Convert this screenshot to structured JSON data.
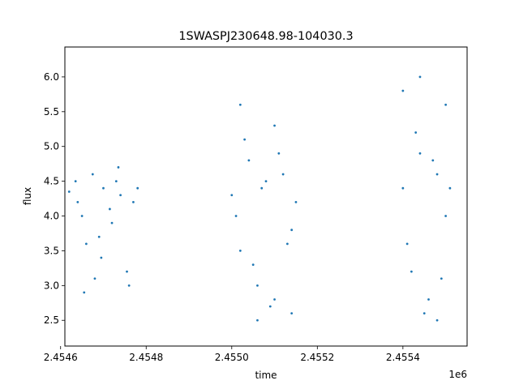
{
  "chart_data": {
    "type": "scatter",
    "title": "1SWASPJ230648.98-104030.3",
    "xlabel": "time",
    "ylabel": "flux",
    "x_offset_label": "1e6",
    "xlim": [
      2.45461,
      2.45555
    ],
    "ylim": [
      2.13,
      6.43
    ],
    "x_ticks": [
      {
        "value": 2.4546,
        "label": "2.4546"
      },
      {
        "value": 2.4548,
        "label": "2.4548"
      },
      {
        "value": 2.455,
        "label": "2.4550"
      },
      {
        "value": 2.4552,
        "label": "2.4552"
      },
      {
        "value": 2.4554,
        "label": "2.4554"
      }
    ],
    "y_ticks": [
      {
        "value": 2.5,
        "label": "2.5"
      },
      {
        "value": 3.0,
        "label": "3.0"
      },
      {
        "value": 3.5,
        "label": "3.5"
      },
      {
        "value": 4.0,
        "label": "4.0"
      },
      {
        "value": 4.5,
        "label": "4.5"
      },
      {
        "value": 5.0,
        "label": "5.0"
      },
      {
        "value": 5.5,
        "label": "5.5"
      },
      {
        "value": 6.0,
        "label": "6.0"
      }
    ],
    "grid": false,
    "marker_color": "#1f77b4",
    "series": [
      {
        "x": [
          2.45462,
          2.45464,
          2.45466,
          2.45468,
          2.4547,
          2.45472,
          2.45474,
          2.45476,
          2.45478,
          2.454635,
          2.454655,
          2.454675,
          2.454695,
          2.454715,
          2.454735,
          2.454755,
          2.45465,
          2.45469,
          2.45473,
          2.45477,
          2.455,
          2.45502,
          2.45504,
          2.45506,
          2.45508,
          2.4551,
          2.45512,
          2.45514,
          2.45501,
          2.45503,
          2.45505,
          2.45507,
          2.45509,
          2.45511,
          2.45513,
          2.45515,
          2.45502,
          2.45506,
          2.4551,
          2.45514,
          2.4554,
          2.45542,
          2.45544,
          2.45546,
          2.45548,
          2.4555,
          2.45541,
          2.45543,
          2.45545,
          2.45547,
          2.45549,
          2.45551,
          2.4554,
          2.45544,
          2.45548,
          2.4555
        ],
        "y": [
          4.35,
          4.2,
          3.6,
          3.1,
          4.4,
          3.9,
          4.3,
          3.0,
          4.4,
          4.5,
          2.9,
          4.6,
          3.4,
          4.1,
          4.7,
          3.2,
          4.0,
          3.7,
          4.5,
          4.2,
          4.3,
          3.5,
          4.8,
          3.0,
          4.5,
          2.8,
          4.6,
          3.8,
          4.0,
          5.1,
          3.3,
          4.4,
          2.7,
          4.9,
          3.6,
          4.2,
          5.6,
          2.5,
          5.3,
          2.6,
          4.4,
          3.2,
          4.9,
          2.8,
          4.6,
          4.0,
          3.6,
          5.2,
          2.6,
          4.8,
          3.1,
          4.4,
          5.8,
          6.0,
          2.5,
          5.6
        ]
      }
    ]
  }
}
